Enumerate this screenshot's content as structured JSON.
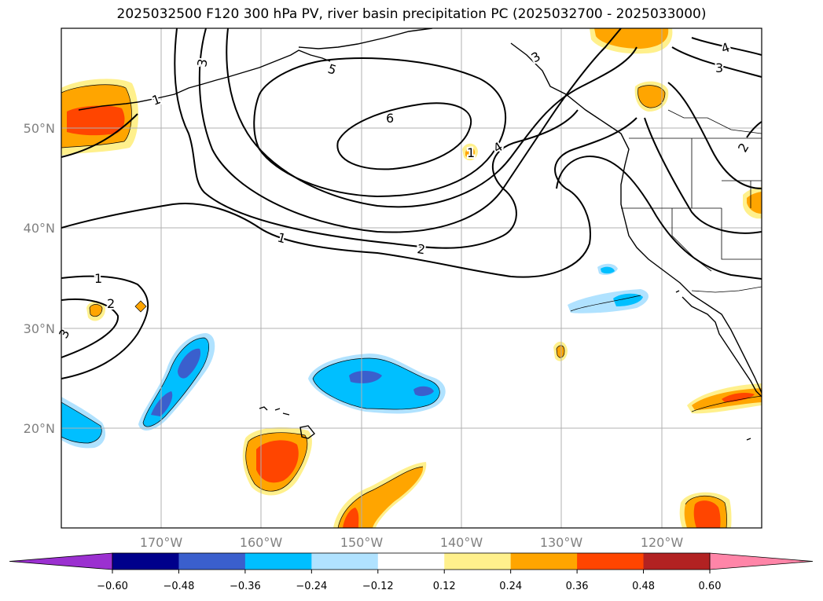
{
  "title": "2025032500 F120 300 hPa PV, river basin precipitation PC (2025032700 - 2025033000)",
  "lat_labels": [
    "50°N",
    "40°N",
    "30°N",
    "20°N"
  ],
  "lon_labels": [
    "170°W",
    "160°W",
    "150°W",
    "140°W",
    "130°W",
    "120°W"
  ],
  "contour_labels": [
    "6",
    "5",
    "4",
    "4",
    "3",
    "3",
    "3",
    "3",
    "2",
    "2",
    "2",
    "1",
    "1",
    "1",
    "1"
  ],
  "colorbar": {
    "ticks": [
      "−0.60",
      "−0.48",
      "−0.36",
      "−0.24",
      "−0.12",
      "0.12",
      "0.24",
      "0.36",
      "0.48",
      "0.60"
    ],
    "colors": {
      "under": "#9b30d0",
      "bins": [
        "#00008b",
        "#3a5fcd",
        "#00bfff",
        "#b0e2ff",
        "#ffffff",
        "#fff08c",
        "#ffa500",
        "#ff4500",
        "#b22222"
      ],
      "over": "#ff85a8"
    }
  },
  "anomaly_colors": {
    "pos_light": "#fff08c",
    "pos_mid": "#ffa500",
    "pos_strong": "#ff4500",
    "neg_light": "#b0e2ff",
    "neg_mid": "#00bfff",
    "neg_strong": "#3a5fcd"
  }
}
